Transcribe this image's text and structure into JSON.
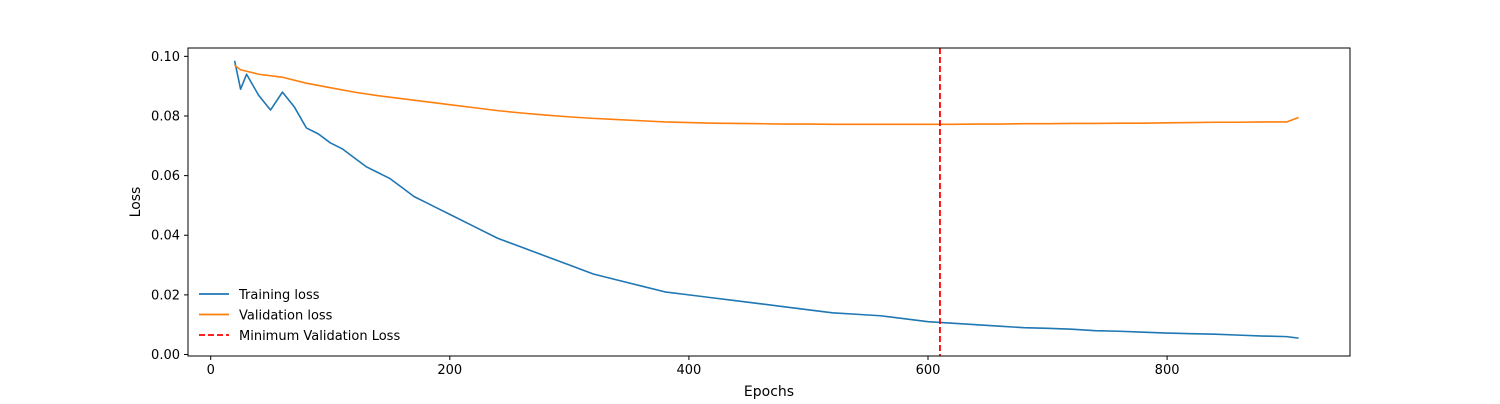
{
  "chart_data": {
    "type": "line",
    "title": "",
    "xlabel": "Epochs",
    "ylabel": "Loss",
    "xlim": [
      -19,
      953
    ],
    "ylim": [
      -0.0005,
      0.1028
    ],
    "xticks": [
      0,
      200,
      400,
      600,
      800
    ],
    "yticks": [
      0.0,
      0.02,
      0.04,
      0.06,
      0.08,
      0.1
    ],
    "xtick_labels": [
      "0",
      "200",
      "400",
      "600",
      "800"
    ],
    "ytick_labels": [
      "0.00",
      "0.02",
      "0.04",
      "0.06",
      "0.08",
      "0.10"
    ],
    "grid": false,
    "legend_position": "lower-left",
    "series": [
      {
        "name": "Training loss",
        "color": "#1f77b4",
        "style": "solid",
        "x": [
          20,
          25,
          30,
          40,
          50,
          60,
          70,
          80,
          90,
          100,
          110,
          120,
          130,
          140,
          150,
          160,
          170,
          180,
          190,
          200,
          220,
          240,
          260,
          280,
          300,
          320,
          340,
          360,
          380,
          400,
          420,
          440,
          460,
          480,
          500,
          520,
          540,
          560,
          580,
          600,
          620,
          640,
          660,
          680,
          700,
          720,
          740,
          760,
          780,
          800,
          820,
          840,
          860,
          880,
          900,
          910
        ],
        "y": [
          0.0985,
          0.089,
          0.094,
          0.087,
          0.082,
          0.088,
          0.083,
          0.076,
          0.074,
          0.071,
          0.069,
          0.066,
          0.063,
          0.061,
          0.059,
          0.056,
          0.053,
          0.051,
          0.049,
          0.047,
          0.043,
          0.039,
          0.036,
          0.033,
          0.03,
          0.027,
          0.025,
          0.023,
          0.021,
          0.02,
          0.019,
          0.018,
          0.017,
          0.016,
          0.015,
          0.014,
          0.0135,
          0.013,
          0.012,
          0.011,
          0.0105,
          0.01,
          0.0095,
          0.009,
          0.0088,
          0.0085,
          0.008,
          0.0078,
          0.0075,
          0.0072,
          0.007,
          0.0068,
          0.0065,
          0.0062,
          0.006,
          0.0055
        ]
      },
      {
        "name": "Validation loss",
        "color": "#ff7f0e",
        "style": "solid",
        "x": [
          20,
          25,
          30,
          40,
          60,
          80,
          100,
          120,
          140,
          160,
          180,
          200,
          220,
          240,
          260,
          280,
          300,
          320,
          340,
          360,
          380,
          400,
          420,
          440,
          460,
          480,
          500,
          520,
          540,
          560,
          580,
          600,
          620,
          640,
          660,
          680,
          700,
          720,
          740,
          760,
          780,
          800,
          820,
          840,
          860,
          880,
          900,
          910
        ],
        "y": [
          0.097,
          0.0955,
          0.095,
          0.094,
          0.093,
          0.091,
          0.0895,
          0.088,
          0.0868,
          0.0858,
          0.0848,
          0.0838,
          0.0828,
          0.0818,
          0.081,
          0.0803,
          0.0797,
          0.0792,
          0.0788,
          0.0784,
          0.078,
          0.0778,
          0.0776,
          0.0775,
          0.0774,
          0.0773,
          0.0773,
          0.0772,
          0.0772,
          0.0772,
          0.0772,
          0.0772,
          0.0772,
          0.0773,
          0.0773,
          0.0774,
          0.0774,
          0.0775,
          0.0775,
          0.0776,
          0.0776,
          0.0777,
          0.0778,
          0.0779,
          0.0779,
          0.078,
          0.078,
          0.0795
        ]
      }
    ],
    "reference_lines": [
      {
        "name": "Minimum Validation Loss",
        "orientation": "vertical",
        "x": 610,
        "color": "#ff0000",
        "style": "dashed"
      }
    ]
  }
}
